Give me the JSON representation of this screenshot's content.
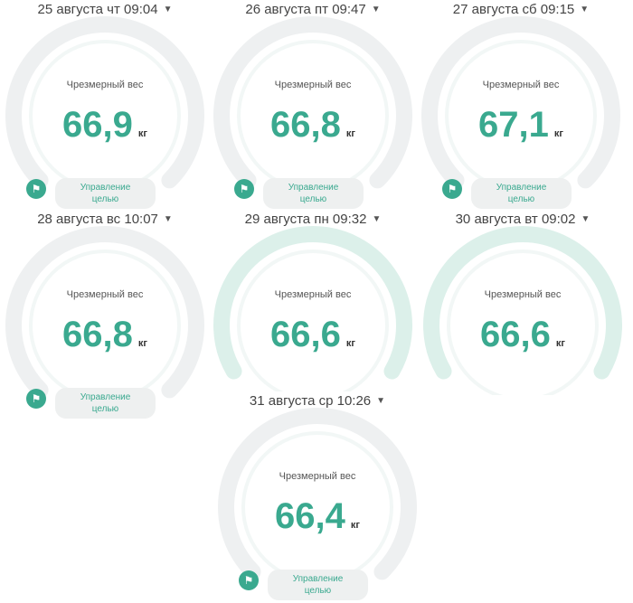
{
  "colors": {
    "accent": "#3aa98f",
    "ring_gray": "#eef0f1",
    "ring_teal": "#dcf0ea"
  },
  "cards": [
    {
      "date": "25 августа чт 09:04",
      "label": "Чрезмерный вес",
      "value": "66,9",
      "unit": "кг",
      "button": "Управление\nцелью",
      "ring": "gray"
    },
    {
      "date": "26 августа пт 09:47",
      "label": "Чрезмерный вес",
      "value": "66,8",
      "unit": "кг",
      "button": "Управление\nцелью",
      "ring": "gray"
    },
    {
      "date": "27 августа сб 09:15",
      "label": "Чрезмерный вес",
      "value": "67,1",
      "unit": "кг",
      "button": "Управление\nцелью",
      "ring": "gray"
    },
    {
      "date": "28 августа вс 10:07",
      "label": "Чрезмерный вес",
      "value": "66,8",
      "unit": "кг",
      "button": "Управление\nцелью",
      "ring": "gray"
    },
    {
      "date": "29 августа пн 09:32",
      "label": "Чрезмерный вес",
      "value": "66,6",
      "unit": "кг",
      "ring": "teal"
    },
    {
      "date": "30 августа вт 09:02",
      "label": "Чрезмерный вес",
      "value": "66,6",
      "unit": "кг",
      "ring": "teal"
    },
    {
      "date": "31 августа ср 10:26",
      "label": "Чрезмерный вес",
      "value": "66,4",
      "unit": "кг",
      "button": "Управление\nцелью",
      "ring": "gray"
    }
  ]
}
